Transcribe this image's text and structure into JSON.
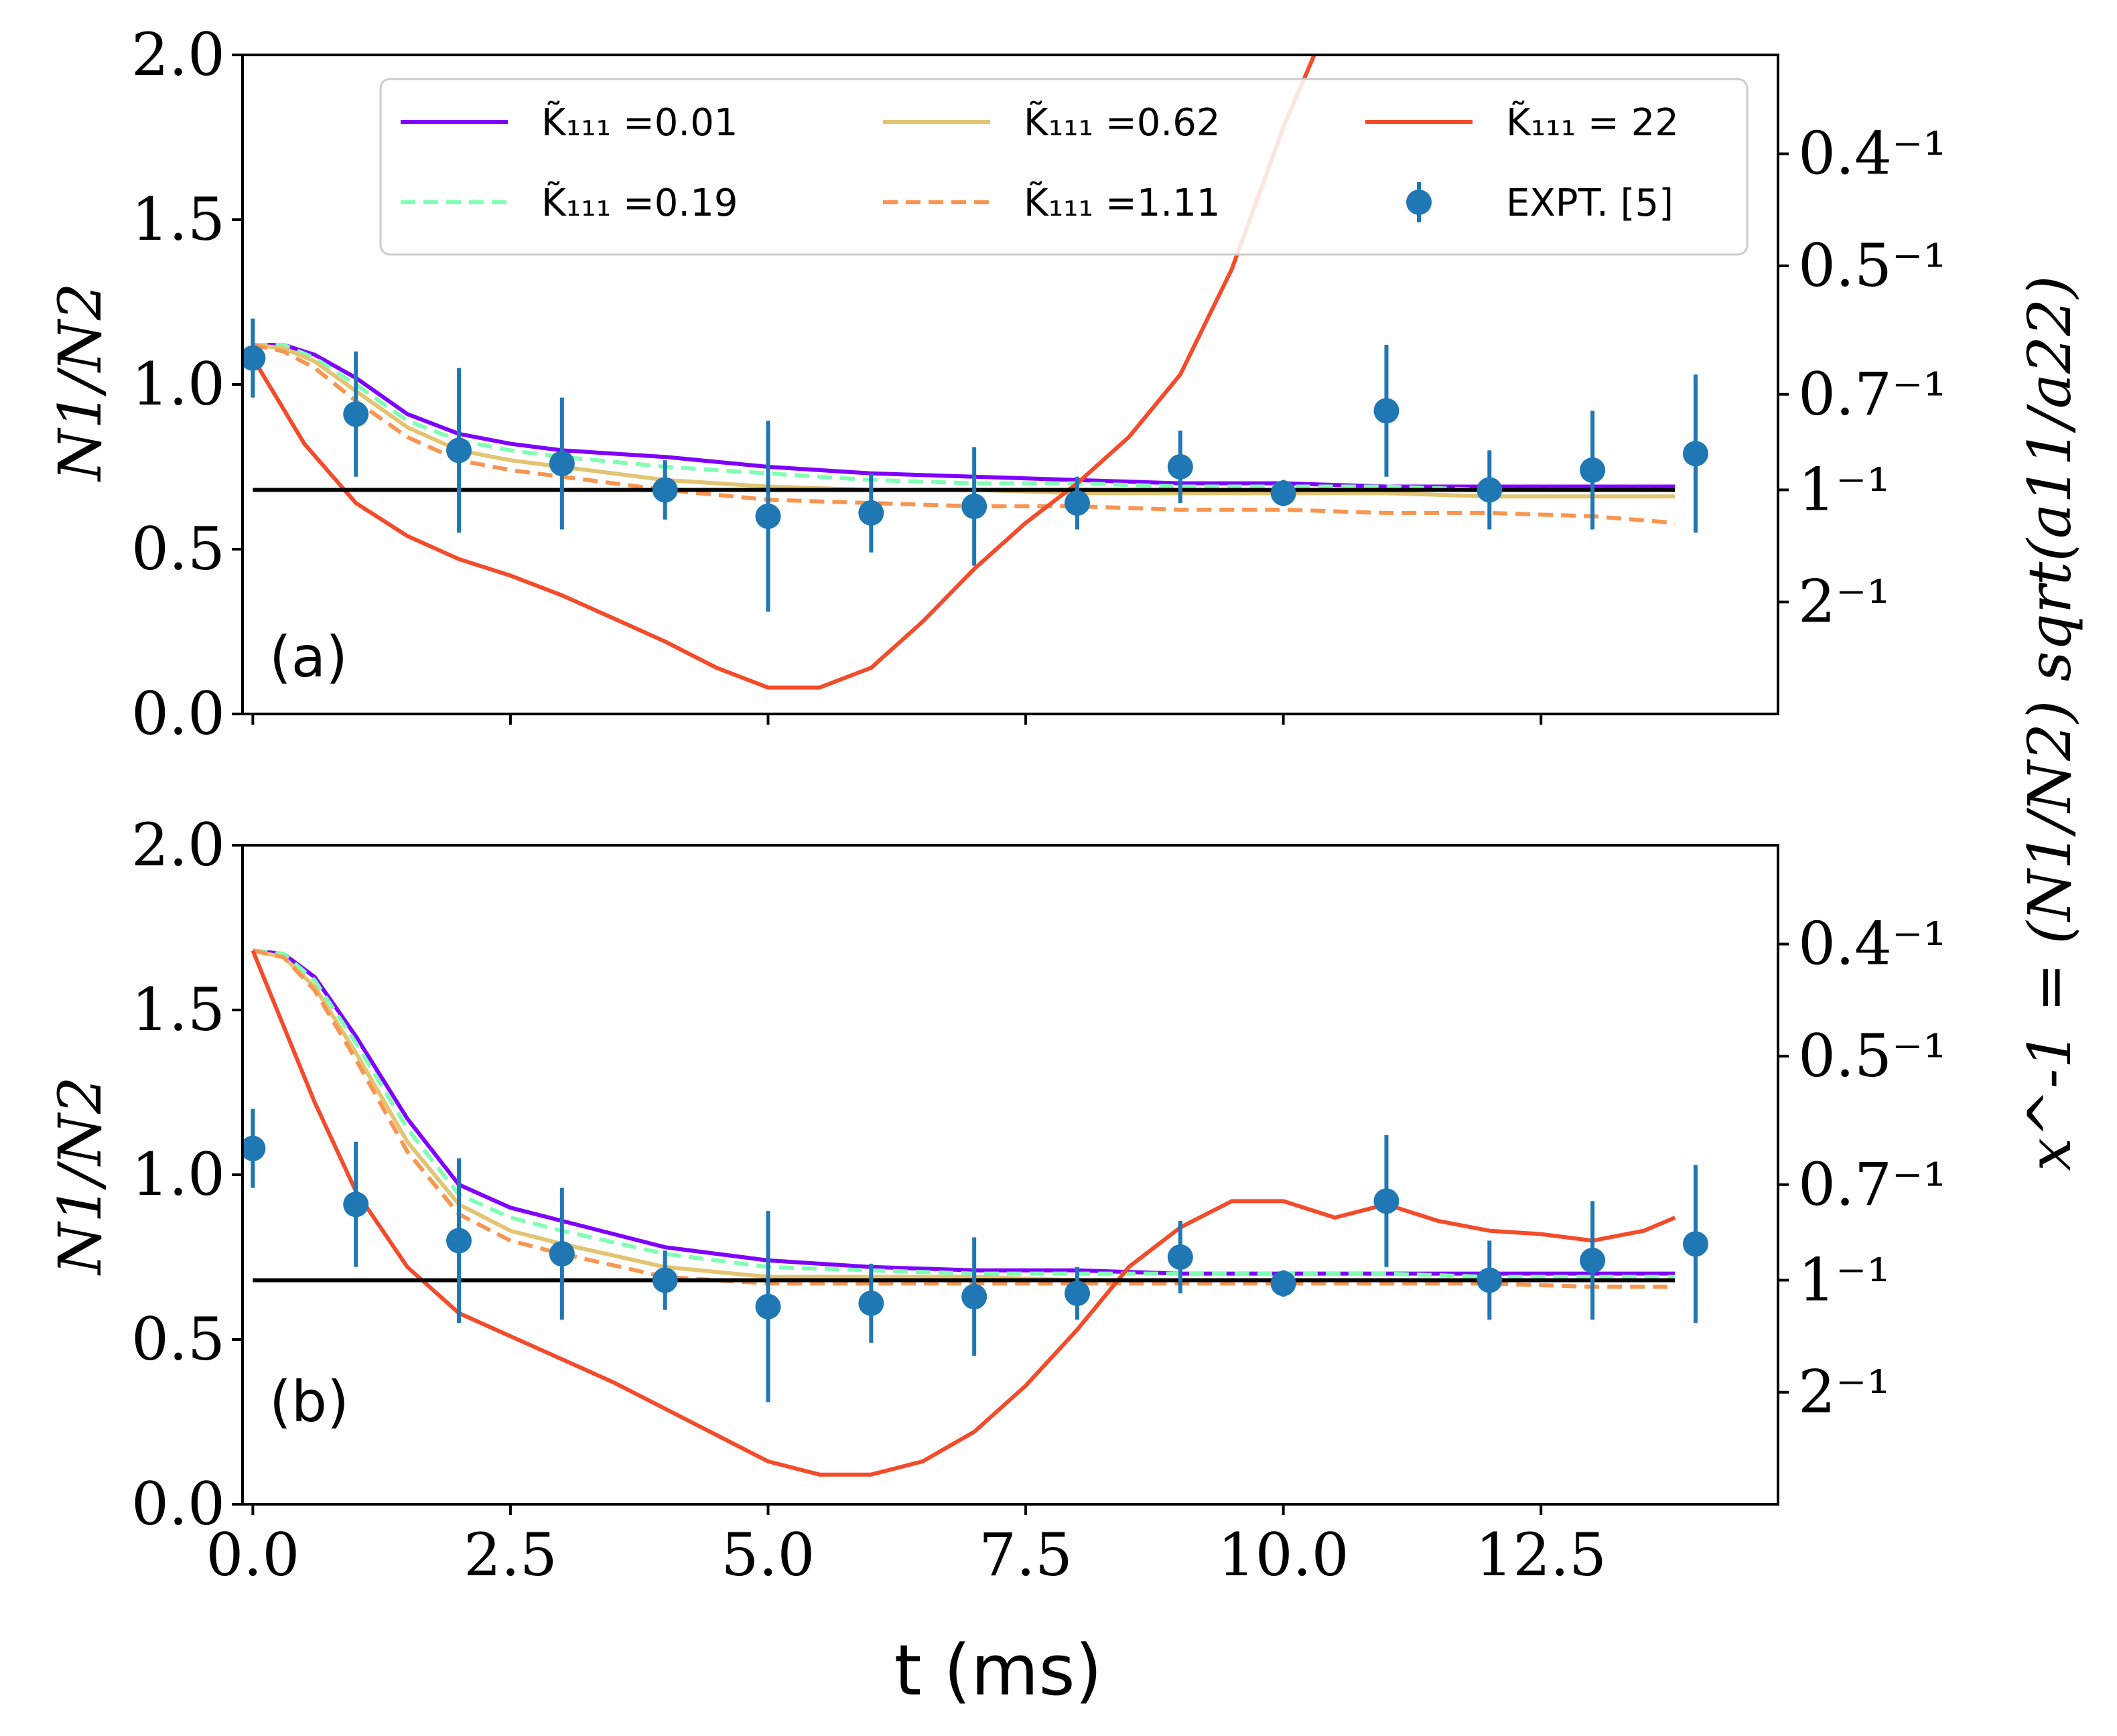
{
  "chart_data": {
    "type": "line",
    "shared": {
      "xlabel": "t (ms)",
      "ylabel": "N1/N2",
      "right_ylabel": "x^-1 = (N1/N2) sqrt(a11/a22)",
      "xlim": [
        -0.1,
        14.8
      ],
      "ylim": [
        0,
        2.0
      ],
      "xticks": [
        0.0,
        2.5,
        5.0,
        7.5,
        10.0,
        12.5
      ],
      "xtick_labels": [
        "0.0",
        "2.5",
        "5.0",
        "7.5",
        "10.0",
        "12.5"
      ],
      "yticks": [
        0.0,
        0.5,
        1.0,
        1.5,
        2.0
      ],
      "ytick_labels": [
        "0.0",
        "0.5",
        "1.0",
        "1.5",
        "2.0"
      ],
      "right_ticks": [
        1.7,
        1.36,
        0.97,
        0.68,
        0.34
      ],
      "right_tick_labels": [
        "0.4⁻¹",
        "0.5⁻¹",
        "0.7⁻¹",
        "1⁻¹",
        "2⁻¹"
      ],
      "reference_line_y": 0.68,
      "legend_position": "top-right"
    },
    "legend": [
      {
        "label": "K̃₁₁₁ =0.01",
        "color": "#8000ff",
        "style": "solid",
        "kind": "line"
      },
      {
        "label": "K̃₁₁₁ =0.19",
        "color": "#80ffb4",
        "style": "dashed",
        "kind": "line"
      },
      {
        "label": "K̃₁₁₁ =0.62",
        "color": "#e2c472",
        "style": "solid",
        "kind": "line"
      },
      {
        "label": "K̃₁₁₁ =1.11",
        "color": "#f89551",
        "style": "dashed",
        "kind": "line"
      },
      {
        "label": "K̃₁₁₁ = 22",
        "color": "#f44b2a",
        "style": "solid",
        "kind": "line"
      },
      {
        "label": "EXPT. [5]",
        "color": "#1f77b4",
        "style": "errorbar",
        "kind": "marker"
      }
    ],
    "experiment": {
      "name": "EXPT. [5]",
      "x": [
        0,
        1,
        2,
        3,
        4,
        5,
        6,
        7,
        8,
        9,
        10,
        11,
        12,
        13,
        14
      ],
      "y": [
        1.08,
        0.91,
        0.8,
        0.76,
        0.68,
        0.6,
        0.61,
        0.63,
        0.64,
        0.75,
        0.67,
        0.92,
        0.68,
        0.74,
        0.79
      ],
      "err": [
        0.12,
        0.19,
        0.25,
        0.2,
        0.09,
        0.29,
        0.12,
        0.18,
        0.08,
        0.11,
        0.04,
        0.2,
        0.12,
        0.18,
        0.24
      ]
    },
    "panels": [
      {
        "label": "(a)",
        "series": [
          {
            "name": "K̃₁₁₁ =0.01",
            "x": [
              0,
              0.3,
              0.6,
              1.0,
              1.5,
              2.0,
              2.5,
              3,
              4,
              5,
              6,
              7,
              8,
              9,
              10,
              11,
              12,
              13,
              13.8
            ],
            "y": [
              1.12,
              1.12,
              1.09,
              1.02,
              0.91,
              0.85,
              0.82,
              0.8,
              0.78,
              0.75,
              0.73,
              0.72,
              0.71,
              0.7,
              0.7,
              0.69,
              0.69,
              0.69,
              0.69
            ]
          },
          {
            "name": "K̃₁₁₁ =0.19",
            "x": [
              0,
              0.3,
              0.6,
              1.0,
              1.5,
              2.0,
              2.5,
              3,
              4,
              5,
              6,
              7,
              8,
              9,
              10,
              11,
              12,
              13,
              13.8
            ],
            "y": [
              1.12,
              1.12,
              1.08,
              1.0,
              0.89,
              0.83,
              0.8,
              0.78,
              0.75,
              0.73,
              0.71,
              0.7,
              0.7,
              0.69,
              0.69,
              0.69,
              0.68,
              0.68,
              0.68
            ]
          },
          {
            "name": "K̃₁₁₁ =0.62",
            "x": [
              0,
              0.3,
              0.6,
              1.0,
              1.5,
              2.0,
              2.5,
              3,
              4,
              5,
              6,
              7,
              8,
              9,
              10,
              11,
              12,
              13,
              13.8
            ],
            "y": [
              1.12,
              1.11,
              1.07,
              0.98,
              0.87,
              0.8,
              0.77,
              0.75,
              0.71,
              0.69,
              0.68,
              0.68,
              0.67,
              0.67,
              0.67,
              0.67,
              0.66,
              0.66,
              0.66
            ]
          },
          {
            "name": "K̃₁₁₁ =1.11",
            "x": [
              0,
              0.3,
              0.6,
              1.0,
              1.5,
              2.0,
              2.5,
              3,
              4,
              5,
              6,
              7,
              8,
              9,
              10,
              11,
              12,
              13,
              13.8
            ],
            "y": [
              1.12,
              1.1,
              1.05,
              0.95,
              0.84,
              0.77,
              0.74,
              0.72,
              0.68,
              0.65,
              0.64,
              0.63,
              0.63,
              0.62,
              0.62,
              0.61,
              0.61,
              0.6,
              0.58
            ]
          },
          {
            "name": "K̃₁₁₁ = 22",
            "x": [
              0,
              0.5,
              1.0,
              1.5,
              2.0,
              2.5,
              3,
              3.5,
              4,
              4.5,
              5,
              5.5,
              6,
              6.5,
              7,
              7.5,
              8,
              8.5,
              9,
              9.5,
              10,
              10.3
            ],
            "y": [
              1.08,
              0.82,
              0.64,
              0.54,
              0.47,
              0.42,
              0.36,
              0.29,
              0.22,
              0.14,
              0.08,
              0.08,
              0.14,
              0.28,
              0.44,
              0.58,
              0.7,
              0.84,
              1.03,
              1.35,
              1.78,
              2.0
            ]
          }
        ]
      },
      {
        "label": "(b)",
        "series": [
          {
            "name": "K̃₁₁₁ =0.01",
            "x": [
              0,
              0.3,
              0.6,
              1.0,
              1.5,
              2.0,
              2.5,
              3,
              4,
              5,
              6,
              7,
              8,
              9,
              10,
              11,
              12,
              13,
              13.8
            ],
            "y": [
              1.68,
              1.67,
              1.6,
              1.42,
              1.17,
              0.97,
              0.9,
              0.86,
              0.78,
              0.74,
              0.72,
              0.71,
              0.71,
              0.7,
              0.7,
              0.7,
              0.7,
              0.7,
              0.7
            ]
          },
          {
            "name": "K̃₁₁₁ =0.19",
            "x": [
              0,
              0.3,
              0.6,
              1.0,
              1.5,
              2.0,
              2.5,
              3,
              4,
              5,
              6,
              7,
              8,
              9,
              10,
              11,
              12,
              13,
              13.8
            ],
            "y": [
              1.68,
              1.67,
              1.59,
              1.4,
              1.14,
              0.94,
              0.87,
              0.83,
              0.76,
              0.72,
              0.71,
              0.7,
              0.7,
              0.7,
              0.7,
              0.7,
              0.69,
              0.69,
              0.69
            ]
          },
          {
            "name": "K̃₁₁₁ =0.62",
            "x": [
              0,
              0.3,
              0.6,
              1.0,
              1.5,
              2.0,
              2.5,
              3,
              4,
              5,
              6,
              7,
              8,
              9,
              10,
              11,
              12,
              13,
              13.8
            ],
            "y": [
              1.68,
              1.66,
              1.57,
              1.37,
              1.1,
              0.91,
              0.83,
              0.79,
              0.72,
              0.69,
              0.69,
              0.69,
              0.68,
              0.68,
              0.68,
              0.68,
              0.68,
              0.68,
              0.68
            ]
          },
          {
            "name": "K̃₁₁₁ =1.11",
            "x": [
              0,
              0.3,
              0.6,
              1.0,
              1.5,
              2.0,
              2.5,
              3,
              4,
              5,
              6,
              7,
              8,
              9,
              10,
              11,
              12,
              13,
              13.8
            ],
            "y": [
              1.68,
              1.66,
              1.56,
              1.35,
              1.07,
              0.88,
              0.8,
              0.76,
              0.69,
              0.67,
              0.67,
              0.67,
              0.67,
              0.67,
              0.67,
              0.67,
              0.67,
              0.66,
              0.66
            ]
          },
          {
            "name": "K̃₁₁₁ = 22",
            "x": [
              0,
              0.3,
              0.6,
              1.0,
              1.5,
              2.0,
              2.5,
              3,
              3.5,
              4,
              4.5,
              5,
              5.5,
              6,
              6.5,
              7,
              7.5,
              8,
              8.5,
              9,
              9.5,
              10,
              10.5,
              11,
              11.5,
              12,
              12.5,
              13,
              13.5,
              13.8
            ],
            "y": [
              1.68,
              1.45,
              1.22,
              0.95,
              0.72,
              0.58,
              0.51,
              0.44,
              0.37,
              0.29,
              0.21,
              0.13,
              0.09,
              0.09,
              0.13,
              0.22,
              0.36,
              0.53,
              0.72,
              0.84,
              0.92,
              0.92,
              0.87,
              0.91,
              0.86,
              0.83,
              0.82,
              0.8,
              0.83,
              0.87
            ]
          }
        ]
      }
    ]
  }
}
